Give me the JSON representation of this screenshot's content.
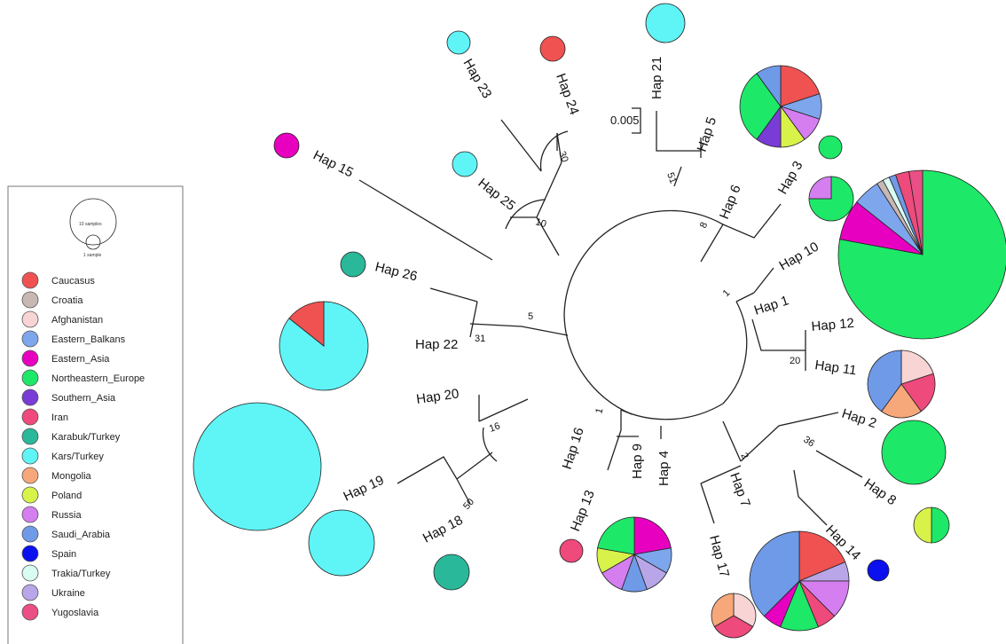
{
  "colors": {
    "Caucasus": "#f05252",
    "Croatia": "#c8b8b4",
    "Afghanistan": "#f8d4d4",
    "Eastern_Balkans": "#7ea6ec",
    "Eastern_Asia": "#e800c0",
    "Northeastern_Europe": "#1ee868",
    "Southern_Asia": "#7a3cd6",
    "Iran": "#ee4a7c",
    "Karabuk/Turkey": "#2ab89a",
    "Kars/Turkey": "#5ff4f6",
    "Mongolia": "#f7a87a",
    "Poland": "#d8f24a",
    "Russia": "#d57ef0",
    "Saudi_Arabia": "#6f9ae8",
    "Spain": "#0a10ee",
    "Trakia/Turkey": "#d8fbf2",
    "Ukraine": "#b8a6e8",
    "Yugoslavia": "#ea4f86"
  },
  "legend": {
    "size_key": {
      "large": "10 samples",
      "small": "1 sample"
    },
    "items": [
      "Caucasus",
      "Croatia",
      "Afghanistan",
      "Eastern_Balkans",
      "Eastern_Asia",
      "Northeastern_Europe",
      "Southern_Asia",
      "Iran",
      "Karabuk/Turkey",
      "Kars/Turkey",
      "Mongolia",
      "Poland",
      "Russia",
      "Saudi_Arabia",
      "Spain",
      "Trakia/Turkey",
      "Ukraine",
      "Yugoslavia"
    ]
  },
  "scale_bar": "0.005",
  "haplotypes": [
    {
      "id": "hap21",
      "label": "Hap 21",
      "pie": [
        {
          "r": "Kars/Turkey",
          "n": 1
        }
      ]
    },
    {
      "id": "hap24",
      "label": "Hap 24",
      "pie": [
        {
          "r": "Caucasus",
          "n": 1
        }
      ]
    },
    {
      "id": "hap23",
      "label": "Hap 23",
      "pie": [
        {
          "r": "Kars/Turkey",
          "n": 1
        }
      ]
    },
    {
      "id": "hap25",
      "label": "Hap 25",
      "pie": [
        {
          "r": "Kars/Turkey",
          "n": 1
        }
      ]
    },
    {
      "id": "hap15",
      "label": "Hap 15",
      "pie": [
        {
          "r": "Eastern_Asia",
          "n": 1
        }
      ]
    },
    {
      "id": "hap26",
      "label": "Hap 26",
      "pie": [
        {
          "r": "Karabuk/Turkey",
          "n": 1
        }
      ]
    },
    {
      "id": "hap22",
      "label": "Hap 22",
      "pie": [
        {
          "r": "Kars/Turkey",
          "n": 6
        },
        {
          "r": "Caucasus",
          "n": 1
        }
      ]
    },
    {
      "id": "hap20",
      "label": "Hap 20",
      "pie": []
    },
    {
      "id": "hap19",
      "label": "Hap 19",
      "pie": [
        {
          "r": "Kars/Turkey",
          "n": 1
        }
      ]
    },
    {
      "id": "hap19b",
      "label": "",
      "pie": [
        {
          "r": "Kars/Turkey",
          "n": 1
        }
      ]
    },
    {
      "id": "hap18",
      "label": "Hap 18",
      "pie": [
        {
          "r": "Karabuk/Turkey",
          "n": 1
        }
      ]
    },
    {
      "id": "hap13",
      "label": "Hap 13",
      "pie": [
        {
          "r": "Iran",
          "n": 1
        }
      ]
    },
    {
      "id": "hap16",
      "label": "Hap 16",
      "pie": []
    },
    {
      "id": "hap9",
      "label": "Hap 9",
      "pie": []
    },
    {
      "id": "hap4",
      "label": "Hap 4",
      "pie": []
    },
    {
      "id": "hap49pie",
      "label": "",
      "pie": [
        {
          "r": "Eastern_Asia",
          "n": 2
        },
        {
          "r": "Eastern_Balkans",
          "n": 1
        },
        {
          "r": "Ukraine",
          "n": 1
        },
        {
          "r": "Saudi_Arabia",
          "n": 1
        },
        {
          "r": "Russia",
          "n": 1
        },
        {
          "r": "Poland",
          "n": 1
        },
        {
          "r": "Northeastern_Europe",
          "n": 2
        }
      ]
    },
    {
      "id": "hap17",
      "label": "Hap 17",
      "pie": [
        {
          "r": "Afghanistan",
          "n": 1
        },
        {
          "r": "Iran",
          "n": 1
        },
        {
          "r": "Mongolia",
          "n": 1
        }
      ]
    },
    {
      "id": "hap7",
      "label": "Hap 7",
      "pie": [
        {
          "r": "Caucasus",
          "n": 3
        },
        {
          "r": "Ukraine",
          "n": 1
        },
        {
          "r": "Russia",
          "n": 2
        },
        {
          "r": "Iran",
          "n": 1
        },
        {
          "r": "Northeastern_Europe",
          "n": 2
        },
        {
          "r": "Eastern_Asia",
          "n": 1
        },
        {
          "r": "Saudi_Arabia",
          "n": 6
        }
      ]
    },
    {
      "id": "hap14",
      "label": "Hap 14",
      "pie": [
        {
          "r": "Spain",
          "n": 1
        }
      ]
    },
    {
      "id": "hap2",
      "label": "Hap 2",
      "pie": [
        {
          "r": "Northeastern_Europe",
          "n": 1
        }
      ]
    },
    {
      "id": "hap8",
      "label": "Hap 8",
      "pie": [
        {
          "r": "Northeastern_Europe",
          "n": 1
        },
        {
          "r": "Poland",
          "n": 1
        }
      ]
    },
    {
      "id": "hap11",
      "label": "Hap 11",
      "pie": [
        {
          "r": "Afghanistan",
          "n": 1
        },
        {
          "r": "Iran",
          "n": 1
        },
        {
          "r": "Mongolia",
          "n": 1
        },
        {
          "r": "Saudi_Arabia",
          "n": 2
        }
      ]
    },
    {
      "id": "hap12",
      "label": "Hap 12",
      "pie": []
    },
    {
      "id": "hap1",
      "label": "Hap 1",
      "pie": [
        {
          "r": "Northeastern_Europe",
          "n": 30
        },
        {
          "r": "Eastern_Asia",
          "n": 3
        },
        {
          "r": "Eastern_Balkans",
          "n": 2
        },
        {
          "r": "Croatia",
          "n": 0.5
        },
        {
          "r": "Trakia/Turkey",
          "n": 0.5
        },
        {
          "r": "Saudi_Arabia",
          "n": 0.5
        },
        {
          "r": "Iran",
          "n": 1
        },
        {
          "r": "Yugoslavia",
          "n": 1
        }
      ]
    },
    {
      "id": "hap10",
      "label": "Hap 10",
      "pie": []
    },
    {
      "id": "hap3",
      "label": "Hap 3",
      "pie": [
        {
          "r": "Northeastern_Europe",
          "n": 3
        },
        {
          "r": "Russia",
          "n": 1
        }
      ]
    },
    {
      "id": "hap3b",
      "label": "",
      "pie": [
        {
          "r": "Northeastern_Europe",
          "n": 1
        }
      ]
    },
    {
      "id": "hap6",
      "label": "Hap 6",
      "pie": [
        {
          "r": "Caucasus",
          "n": 2
        },
        {
          "r": "Eastern_Balkans",
          "n": 1
        },
        {
          "r": "Russia",
          "n": 1
        },
        {
          "r": "Poland",
          "n": 1
        },
        {
          "r": "Southern_Asia",
          "n": 1
        },
        {
          "r": "Northeastern_Europe",
          "n": 3
        },
        {
          "r": "Saudi_Arabia",
          "n": 1
        }
      ]
    },
    {
      "id": "hap5",
      "label": "Hap 5",
      "pie": []
    }
  ],
  "supports": [
    "30",
    "10",
    "5",
    "31",
    "16",
    "50",
    "1",
    "51",
    "8",
    "1",
    "20",
    "36",
    "2"
  ]
}
